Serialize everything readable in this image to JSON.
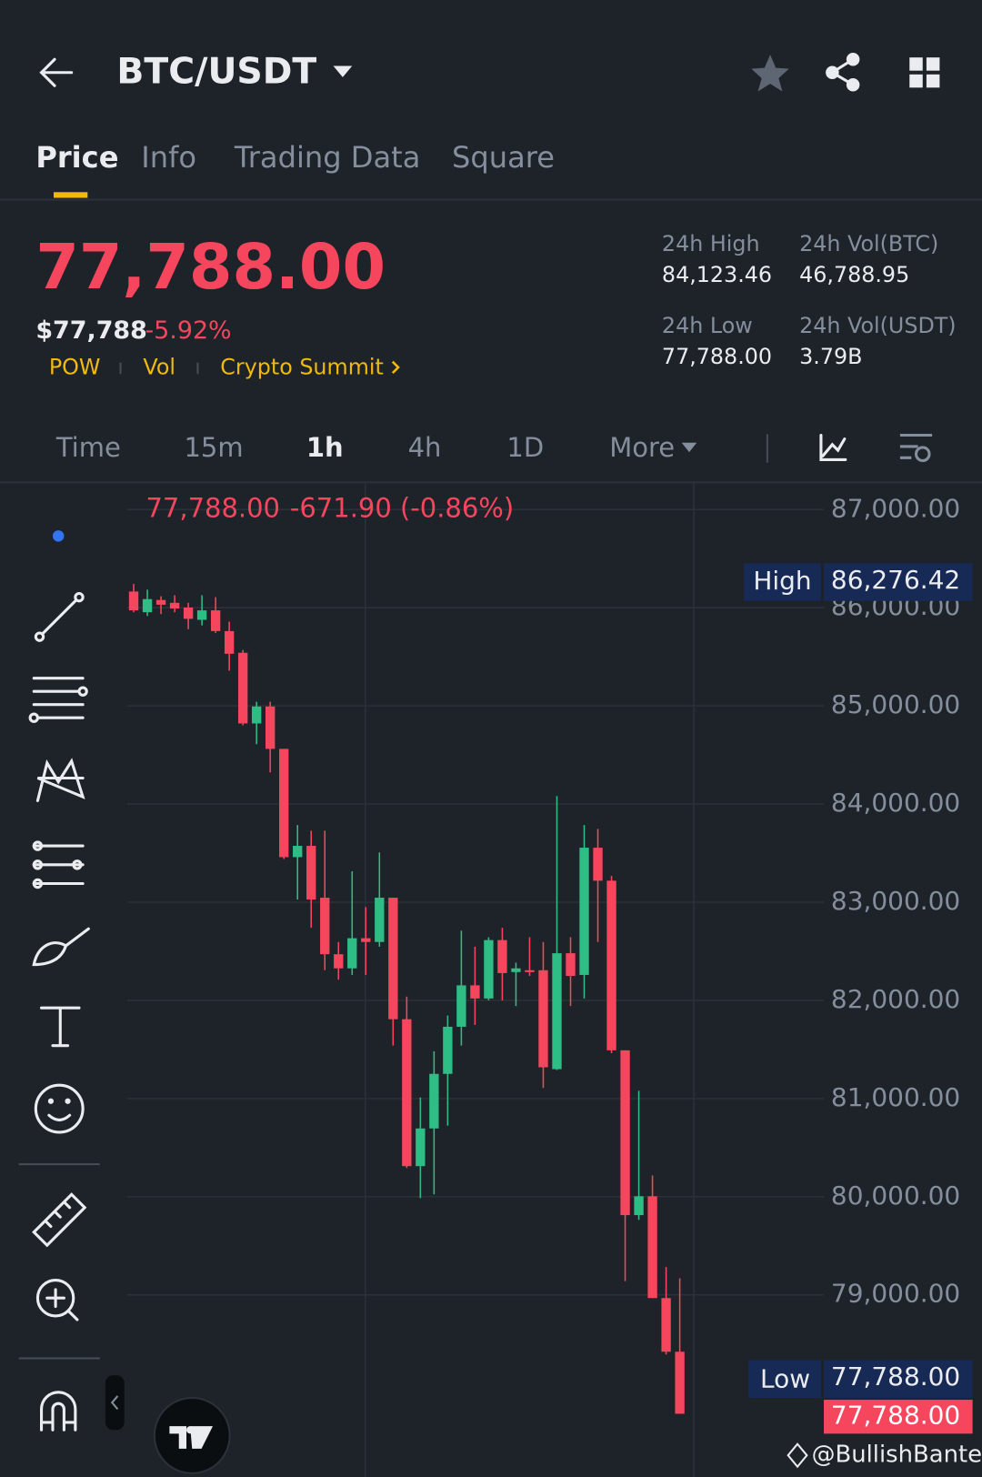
{
  "header": {
    "pair": "BTC/USDT"
  },
  "tabs": [
    "Price",
    "Info",
    "Trading Data",
    "Square"
  ],
  "ticker": {
    "price": "77,788.00",
    "fiat_price": "$77,788",
    "change": "-5.92%",
    "tags": [
      "POW",
      "Vol",
      "Crypto Summit"
    ],
    "stats": [
      {
        "label": "24h High",
        "value": "84,123.46"
      },
      {
        "label": "24h Vol(BTC)",
        "value": "46,788.95"
      },
      {
        "label": "24h Low",
        "value": "77,788.00"
      },
      {
        "label": "24h Vol(USDT)",
        "value": "3.79B"
      }
    ]
  },
  "intervals": [
    "Time",
    "15m",
    "1h",
    "4h",
    "1D",
    "More"
  ],
  "chart_data": {
    "type": "candlestick",
    "info": {
      "close": "77,788.00",
      "change": "-671.90 (-0.86%)"
    },
    "high_marker": {
      "label": "High",
      "value": "86,276.42"
    },
    "low_marker": {
      "label": "Low",
      "value": "77,788.00"
    },
    "last_price": "77,788.00",
    "open": [
      86165,
      85954,
      86079,
      86050,
      86002,
      85877,
      85973,
      85762,
      85541,
      84821,
      84994,
      84562,
      83459,
      83574,
      83046,
      82470,
      82326,
      82633,
      82595,
      83046,
      81808,
      80311,
      80695,
      81251,
      81731,
      82153,
      82019,
      82614,
      82288,
      82307,
      82307,
      81299,
      82480,
      82259,
      83555,
      83219,
      81491,
      79812,
      80004,
      78967,
      78420
    ],
    "high": [
      86242,
      86184,
      86117,
      86127,
      86050,
      86127,
      86108,
      85858,
      85570,
      85042,
      85042,
      84562,
      83786,
      83728,
      83728,
      82595,
      83315,
      82950,
      83507,
      83046,
      82038,
      81011,
      81482,
      81846,
      82710,
      82547,
      82643,
      82739,
      82384,
      82643,
      82595,
      84082,
      82643,
      83786,
      83747,
      83267,
      81491,
      81078,
      80215,
      79284,
      79169
    ],
    "low": [
      85954,
      85916,
      85935,
      85954,
      85781,
      85820,
      85743,
      85359,
      84802,
      84610,
      84322,
      83440,
      83027,
      82739,
      82307,
      82211,
      82259,
      82259,
      82547,
      81539,
      80292,
      79985,
      80023,
      80724,
      81539,
      81750,
      82000,
      82000,
      81942,
      82249,
      81107,
      81290,
      81942,
      82019,
      82595,
      81462,
      79140,
      79764,
      78967,
      78392,
      77788
    ],
    "close": [
      85973,
      86088,
      86031,
      85992,
      85887,
      85973,
      85762,
      85531,
      84821,
      84994,
      84562,
      83459,
      83574,
      83027,
      82470,
      82326,
      82633,
      82595,
      83046,
      81808,
      80311,
      80695,
      81251,
      81731,
      82153,
      82019,
      82614,
      82278,
      82326,
      82288,
      81318,
      82480,
      82249,
      83555,
      83219,
      81491,
      79812,
      80004,
      78967,
      78420,
      77788
    ],
    "up_color": "#2ebd85",
    "down_color": "#f6465d",
    "ylim": [
      77144,
      87278
    ],
    "yticks": [
      {
        "value": 79000,
        "label": "79,000.00"
      },
      {
        "value": 80000,
        "label": "80,000.00"
      },
      {
        "value": 81000,
        "label": "81,000.00"
      },
      {
        "value": 82000,
        "label": "82,000.00"
      },
      {
        "value": 83000,
        "label": "83,000.00"
      },
      {
        "value": 84000,
        "label": "84,000.00"
      },
      {
        "value": 85000,
        "label": "85,000.00"
      },
      {
        "value": 86000,
        "label": "86,000.00"
      },
      {
        "value": 87000,
        "label": "87,000.00"
      }
    ],
    "grid": true
  },
  "watermark": "@BullishBanter"
}
